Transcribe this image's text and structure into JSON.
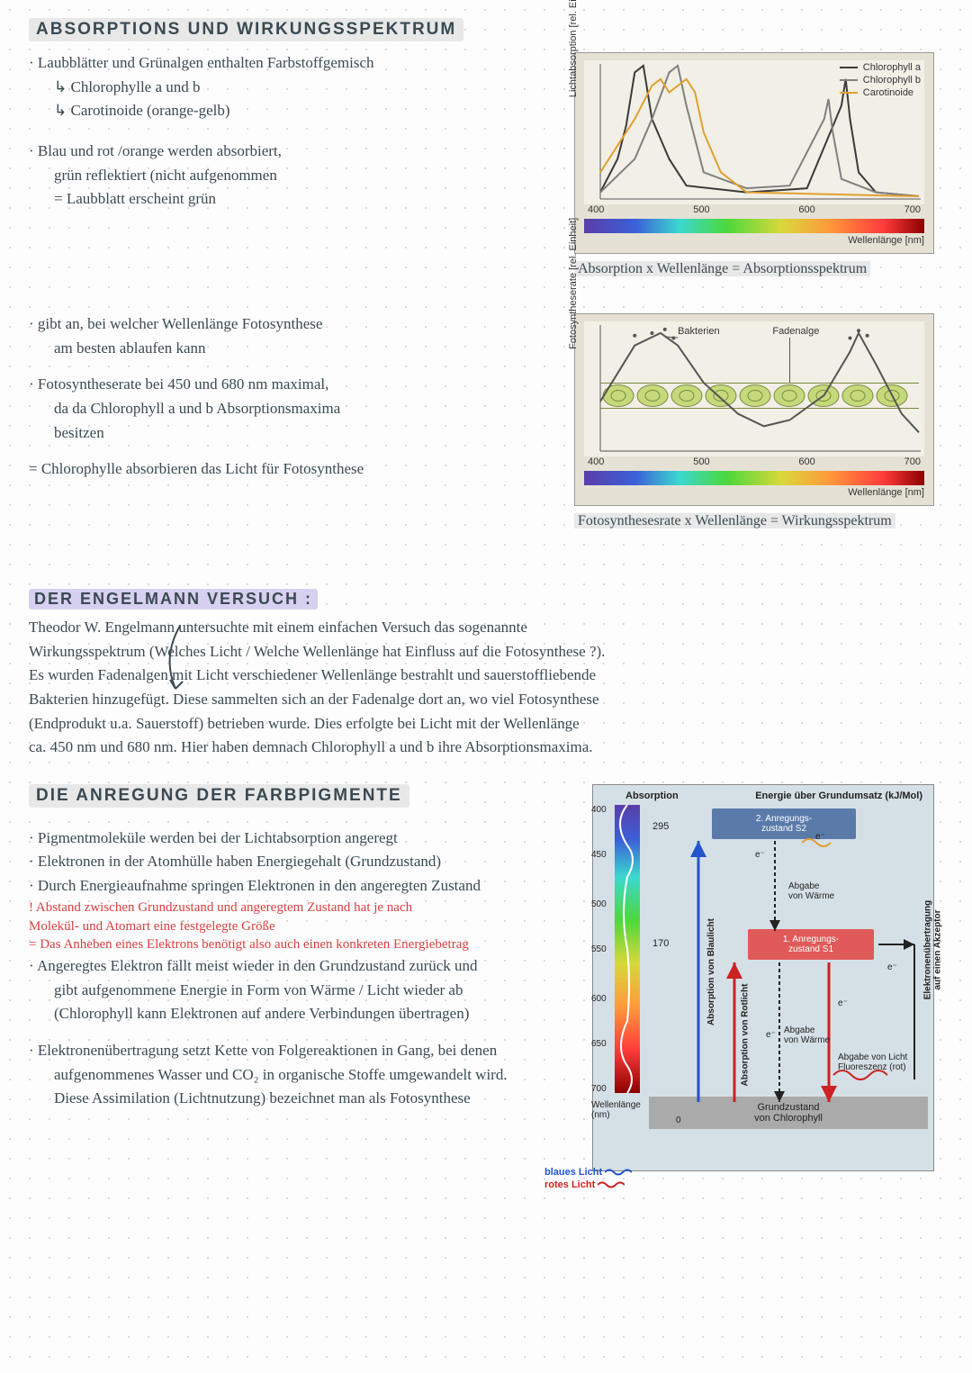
{
  "headings": {
    "main": "ABSORPTIONS UND WIRKUNGSSPEKTRUM",
    "engelmann": "DER ENGELMANN VERSUCH :",
    "anregung": "DIE ANREGUNG DER FARBPIGMENTE"
  },
  "section1": {
    "l1": "· Laubblätter und Grünalgen enthalten Farbstoffgemisch",
    "l2": "↳ Chlorophylle a und b",
    "l3": "↳ Carotinoide (orange-gelb)",
    "l4": "· Blau und rot /orange werden absorbiert,",
    "l5": "grün reflektiert (nicht aufgenommen",
    "l6": "= Laubblatt erscheint grün"
  },
  "caption1": "Absorption x Wellenlänge = Absorptionsspektrum",
  "section2": {
    "l1": "· gibt an, bei welcher Wellenlänge Fotosynthese",
    "l2": "am besten ablaufen kann",
    "l3": "· Fotosyntheserate bei 450 und 680 nm maximal,",
    "l4": "da da Chlorophyll a und b Absorptionsmaxima",
    "l5": "besitzen",
    "l6": "= Chlorophylle absorbieren das Licht für Fotosynthese"
  },
  "caption2": "Fotosynthesesrate x Wellenlänge = Wirkungsspektrum",
  "engelmann_text": {
    "p1": "Theodor W. Engelmann untersuchte mit einem einfachen Versuch das sogenannte",
    "p2": "Wirkungsspektrum (Welches Licht / Welche Wellenlänge hat Einfluss auf die Fotosynthese ?).",
    "p3": "Es wurden Fadenalgen mit Licht verschiedener Wellenlänge bestrahlt und sauerstoffliebende",
    "p4": "Bakterien hinzugefügt. Diese sammelten sich an der Fadenalge dort an, wo viel Fotosynthese",
    "p5": "(Endprodukt u.a. Sauerstoff) betrieben wurde. Dies erfolgte bei Licht mit der Wellenlänge",
    "p6": "ca. 450 nm und 680 nm. Hier haben demnach Chlorophyll a und b ihre Absorptionsmaxima."
  },
  "section3": {
    "l1": "· Pigmentmoleküle werden bei der Lichtabsorption angeregt",
    "l2": "· Elektronen in der Atomhülle haben Energiegehalt (Grundzustand)",
    "l3": "· Durch Energieaufnahme springen Elektronen in den angeregten Zustand",
    "r1": "! Abstand zwischen Grundzustand und angeregtem Zustand hat je nach",
    "r2": "Molekül- und Atomart eine festgelegte Größe",
    "r3": "= Das Anheben eines Elektrons benötigt also auch einen konkreten Energiebetrag",
    "l4": "· Angeregtes Elektron fällt meist wieder in den Grundzustand zurück und",
    "l5": "gibt aufgenommene Energie in Form von Wärme / Licht wieder ab",
    "l6": "(Chlorophyll kann Elektronen auf andere Verbindungen übertragen)",
    "l7": "· Elektronenübertragung setzt Kette von Folgereaktionen in Gang, bei denen",
    "l8": "aufgenommenes Wasser und CO₂ in organische Stoffe umgewandelt wird.",
    "l9": "Diese Assimilation (Lichtnutzung) bezeichnet man als Fotosynthese"
  },
  "chart1": {
    "type": "line",
    "ylabel": "Lichtabsorption [rel. Einheit]",
    "xlabel": "Wellenlänge [nm]",
    "xticks": [
      "400",
      "500",
      "600",
      "700"
    ],
    "xlim": [
      380,
      750
    ],
    "legend": [
      {
        "label": "Chlorophyll a",
        "color": "#3a3a3a"
      },
      {
        "label": "Chlorophyll b",
        "color": "#808080"
      },
      {
        "label": "Carotinoide",
        "color": "#e0a030"
      }
    ],
    "background": "#f2efe6",
    "series": {
      "chl_a": {
        "color": "#3a3a3a",
        "width": 2,
        "points": [
          [
            380,
            5
          ],
          [
            400,
            30
          ],
          [
            410,
            55
          ],
          [
            420,
            95
          ],
          [
            430,
            100
          ],
          [
            440,
            60
          ],
          [
            450,
            45
          ],
          [
            460,
            30
          ],
          [
            480,
            10
          ],
          [
            550,
            5
          ],
          [
            620,
            8
          ],
          [
            660,
            70
          ],
          [
            665,
            90
          ],
          [
            670,
            60
          ],
          [
            680,
            20
          ],
          [
            700,
            5
          ],
          [
            750,
            2
          ]
        ]
      },
      "chl_b": {
        "color": "#808080",
        "width": 2,
        "points": [
          [
            380,
            5
          ],
          [
            420,
            30
          ],
          [
            440,
            60
          ],
          [
            460,
            95
          ],
          [
            470,
            100
          ],
          [
            480,
            70
          ],
          [
            500,
            20
          ],
          [
            550,
            8
          ],
          [
            600,
            10
          ],
          [
            640,
            60
          ],
          [
            645,
            75
          ],
          [
            650,
            50
          ],
          [
            660,
            15
          ],
          [
            700,
            5
          ],
          [
            750,
            2
          ]
        ]
      },
      "carot": {
        "color": "#e0a030",
        "width": 2,
        "points": [
          [
            380,
            20
          ],
          [
            420,
            60
          ],
          [
            440,
            85
          ],
          [
            450,
            90
          ],
          [
            460,
            80
          ],
          [
            480,
            90
          ],
          [
            490,
            80
          ],
          [
            500,
            50
          ],
          [
            520,
            20
          ],
          [
            550,
            5
          ],
          [
            750,
            2
          ]
        ]
      }
    }
  },
  "chart2": {
    "type": "line-with-image",
    "ylabel": "Fotosyntheserate [rel. Einheit]",
    "xlabel": "Wellenlänge [nm]",
    "xticks": [
      "400",
      "500",
      "600",
      "700"
    ],
    "labels": {
      "bakterien": "Bakterien",
      "fadenalge": "Fadenalge"
    },
    "curve": {
      "color": "#555",
      "width": 2,
      "points": [
        [
          380,
          40
        ],
        [
          420,
          85
        ],
        [
          450,
          95
        ],
        [
          470,
          85
        ],
        [
          500,
          55
        ],
        [
          540,
          30
        ],
        [
          570,
          20
        ],
        [
          600,
          25
        ],
        [
          640,
          45
        ],
        [
          670,
          80
        ],
        [
          680,
          95
        ],
        [
          700,
          70
        ],
        [
          730,
          30
        ],
        [
          750,
          15
        ]
      ]
    },
    "alga_color": "#c5d97a",
    "alga_border": "#7a8a40"
  },
  "energy": {
    "title_left": "Absorption",
    "title_right": "Energie über Grundumsatz (kJ/Mol)",
    "wavelengths": [
      "400",
      "450",
      "500",
      "550",
      "600",
      "650",
      "700"
    ],
    "wl_label": "Wellenlänge\n(nm)",
    "e_295": "295",
    "e_170": "170",
    "s2": "2. Anregungs-\nzustand S2",
    "s1": "1. Anregungs-\nzustand S1",
    "ground": "Grundzustand\nvon Chlorophyll",
    "abs_blau": "Absorption von Blaulicht",
    "abs_rot": "Absorption von Rotlicht",
    "abgabe_w": "Abgabe\nvon Wärme",
    "eminus": "e⁻",
    "transfer": "Elektronenübertragung\nauf einen Akzeptor",
    "fluor": "Abgabe von Licht\nFluoreszenz (rot)",
    "blue_light": "blaues Licht",
    "red_light": "rotes Licht",
    "zero": "0",
    "colors": {
      "s1_bg": "#e05a5a",
      "s2_bg": "#5a7aaa",
      "ground_bg": "#aaaaaa",
      "blue_arrow": "#2255cc",
      "red_arrow": "#cc2222",
      "black_arrow": "#222"
    }
  }
}
